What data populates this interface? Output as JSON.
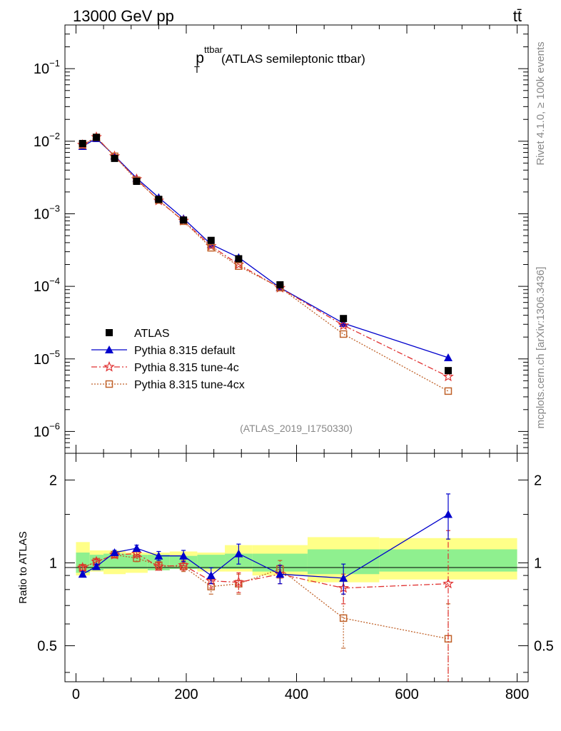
{
  "header": {
    "left": "13000 GeV pp",
    "right": "tt̄"
  },
  "side_labels": {
    "top": "Rivet 4.1.0, ≥ 100k events",
    "bottom": "mcplots.cern.ch [arXiv:1306.3436]"
  },
  "chart_data": {
    "type": "line",
    "title": "p_T^ttbar (ATLAS semileptonic ttbar)",
    "title_parts": {
      "main": "p",
      "sup": "ttbar",
      "sub": "T",
      "rest": "(ATLAS semileptonic ttbar)"
    },
    "analysis_label": "(ATLAS_2019_I1750330)",
    "x": [
      12,
      37,
      70,
      110,
      150,
      195,
      245,
      295,
      370,
      485,
      675
    ],
    "xlim": [
      -20,
      820
    ],
    "x_ticks": [
      0,
      200,
      400,
      600,
      800
    ],
    "x_tick_labels": [
      "0",
      "200",
      "400",
      "600",
      "800"
    ],
    "main": {
      "yscale": "log",
      "ylim": [
        5e-07,
        0.4
      ],
      "y_ticks": [
        1e-06,
        1e-05,
        0.0001,
        0.001,
        0.01,
        0.1
      ],
      "y_tick_labels": [
        {
          "base": "10",
          "exp": "−6"
        },
        {
          "base": "10",
          "exp": "−5"
        },
        {
          "base": "10",
          "exp": "−4"
        },
        {
          "base": "10",
          "exp": "−3"
        },
        {
          "base": "10",
          "exp": "−2"
        },
        {
          "base": "10",
          "exp": "−1"
        }
      ],
      "series": [
        {
          "name": "ATLAS",
          "color": "#000000",
          "marker": "square",
          "line": "none",
          "values": [
            0.0093,
            0.0113,
            0.0058,
            0.0028,
            0.00158,
            0.00082,
            0.00043,
            0.00024,
            0.000105,
            3.6e-05,
            6.9e-06
          ]
        },
        {
          "name": "Pythia 8.315 default",
          "color": "#0000cc",
          "marker": "triangle",
          "line": "solid",
          "values": [
            0.0085,
            0.0109,
            0.0063,
            0.0031,
            0.00168,
            0.00086,
            0.00038,
            0.00025,
            9.6e-05,
            3.1e-05,
            1.04e-05
          ]
        },
        {
          "name": "Pythia 8.315 tune-4c",
          "color": "#e03030",
          "marker": "star",
          "line": "dashdot",
          "values": [
            0.0089,
            0.0114,
            0.0062,
            0.003,
            0.00152,
            0.0008,
            0.00036,
            0.0002,
            9.5e-05,
            2.9e-05,
            5.7e-06
          ]
        },
        {
          "name": "Pythia 8.315 tune-4cx",
          "color": "#c0622a",
          "marker": "open-square",
          "line": "dotted",
          "values": [
            0.0089,
            0.0113,
            0.0062,
            0.0029,
            0.00155,
            0.00079,
            0.00034,
            0.00019,
            9.6e-05,
            2.2e-05,
            3.6e-06
          ]
        }
      ]
    },
    "ratio": {
      "ylabel": "Ratio to ATLAS",
      "ylim": [
        0.37,
        2.5
      ],
      "y_ticks": [
        0.5,
        1,
        2
      ],
      "y_tick_labels": [
        "0.5",
        "1",
        "2"
      ],
      "band_edges": [
        0,
        25,
        50,
        90,
        130,
        170,
        220,
        270,
        320,
        420,
        550,
        800
      ],
      "band_inner": [
        [
          0.92,
          1.09
        ],
        [
          0.94,
          1.07
        ],
        [
          0.95,
          1.08
        ],
        [
          0.95,
          1.07
        ],
        [
          0.94,
          1.07
        ],
        [
          0.95,
          1.06
        ],
        [
          0.95,
          1.07
        ],
        [
          0.95,
          1.08
        ],
        [
          0.93,
          1.08
        ],
        [
          0.91,
          1.12
        ],
        [
          0.93,
          1.12
        ]
      ],
      "band_outer": [
        [
          0.9,
          1.19
        ],
        [
          0.93,
          1.11
        ],
        [
          0.91,
          1.11
        ],
        [
          0.92,
          1.09
        ],
        [
          0.94,
          1.09
        ],
        [
          0.95,
          1.1
        ],
        [
          0.93,
          1.09
        ],
        [
          0.93,
          1.16
        ],
        [
          0.9,
          1.16
        ],
        [
          0.85,
          1.24
        ],
        [
          0.87,
          1.23
        ]
      ],
      "series": [
        {
          "name": "Pythia 8.315 default",
          "values": [
            0.91,
            0.97,
            1.09,
            1.13,
            1.06,
            1.06,
            0.9,
            1.08,
            0.91,
            0.88,
            1.5
          ],
          "err": [
            0.02,
            0.02,
            0.02,
            0.03,
            0.04,
            0.05,
            0.06,
            0.09,
            0.07,
            0.11,
            0.28
          ]
        },
        {
          "name": "Pythia 8.315 tune-4c",
          "values": [
            0.96,
            1.01,
            1.07,
            1.08,
            0.97,
            0.98,
            0.86,
            0.85,
            0.91,
            0.81,
            0.84
          ],
          "err": [
            0.02,
            0.02,
            0.02,
            0.03,
            0.03,
            0.04,
            0.05,
            0.07,
            0.07,
            0.1,
            0.47
          ]
        },
        {
          "name": "Pythia 8.315 tune-4cx",
          "values": [
            0.96,
            1.01,
            1.07,
            1.04,
            0.98,
            0.97,
            0.82,
            0.84,
            0.95,
            0.63,
            0.53
          ],
          "err": [
            0.02,
            0.02,
            0.02,
            0.03,
            0.03,
            0.04,
            0.05,
            0.07,
            0.07,
            0.14,
            0.18
          ]
        }
      ]
    }
  }
}
